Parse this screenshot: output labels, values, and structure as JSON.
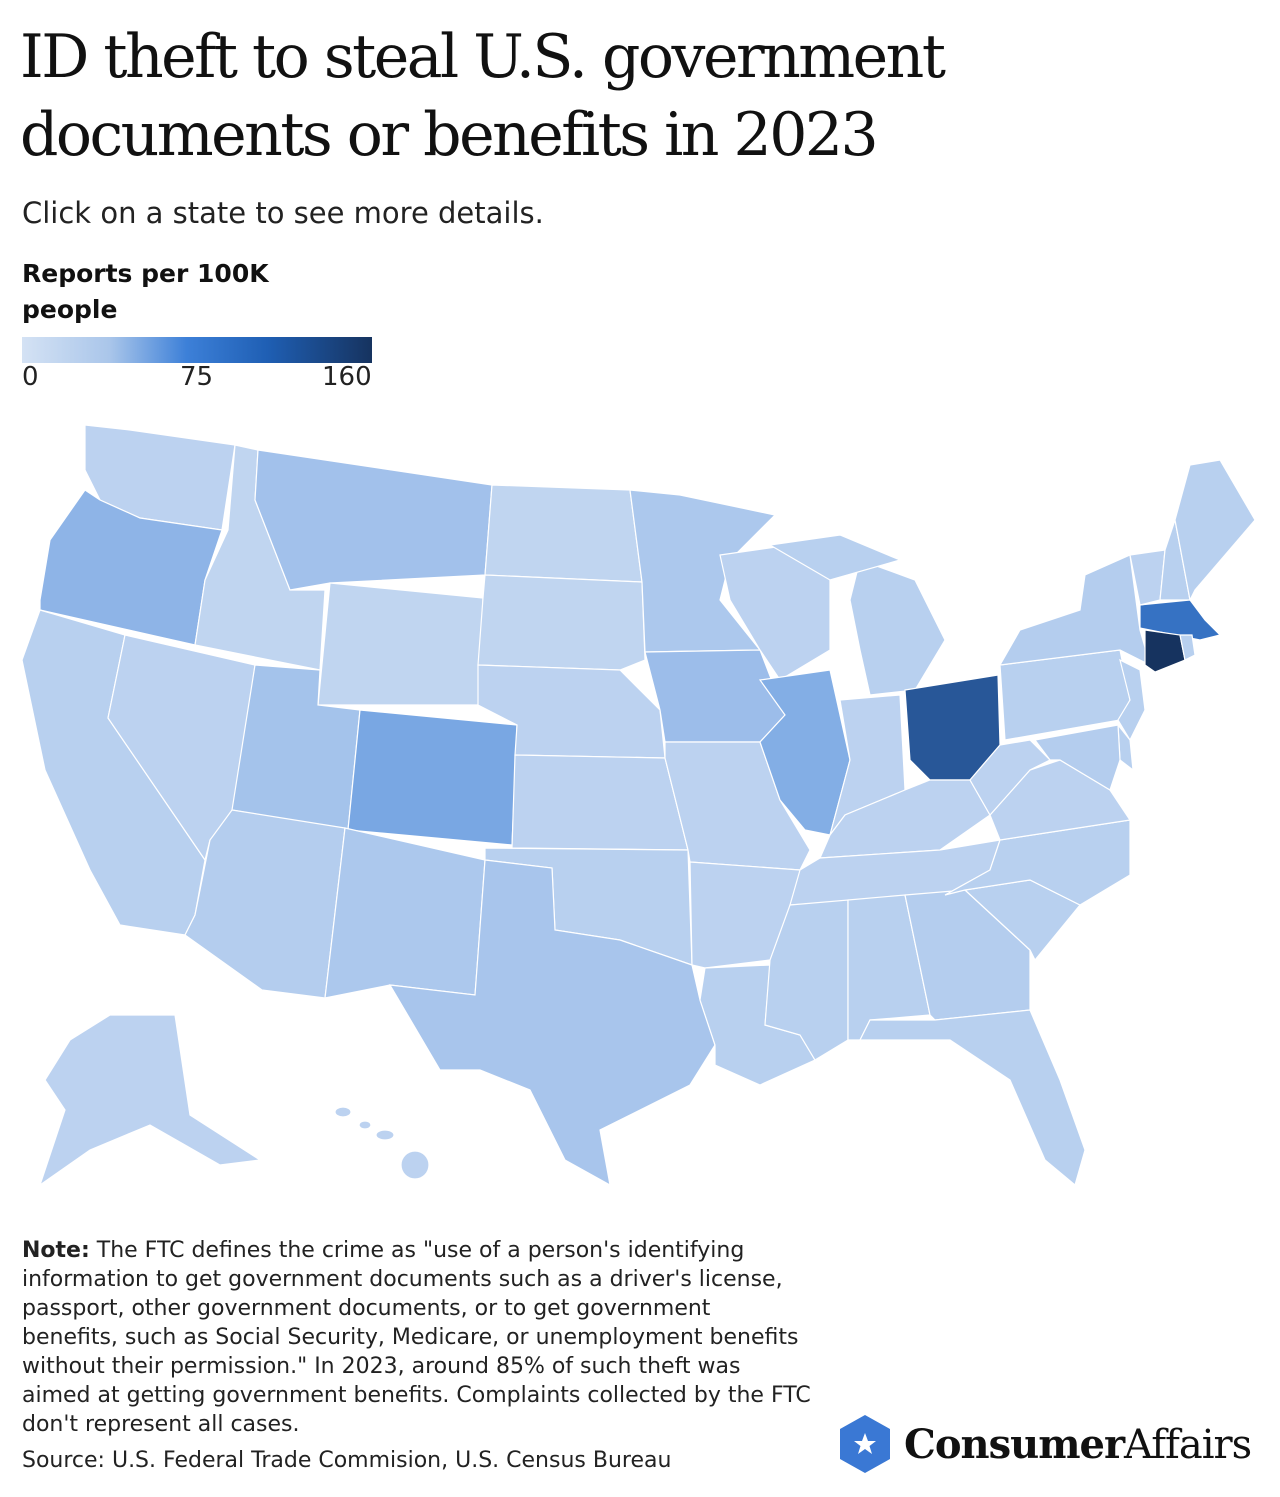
{
  "title": "ID theft to steal U.S. government documents or benefits in 2023",
  "subtitle": "Click on a state to see more details.",
  "legend": {
    "title": "Reports per 100K people",
    "ticks": [
      "0",
      "75",
      "160"
    ],
    "min": 0,
    "max": 160,
    "colors": [
      "#d4e2f4",
      "#3d80d8",
      "#16335f"
    ]
  },
  "map_data": {
    "type": "choropleth",
    "metric": "Reports per 100K people",
    "values": {
      "WA": 12,
      "OR": 35,
      "CA": 14,
      "ID": 10,
      "NV": 12,
      "MT": 25,
      "WY": 10,
      "UT": 24,
      "CO": 45,
      "AZ": 16,
      "NM": 20,
      "ND": 10,
      "SD": 10,
      "NE": 12,
      "KS": 12,
      "OK": 14,
      "TX": 22,
      "MN": 20,
      "IA": 28,
      "MO": 12,
      "AR": 12,
      "LA": 14,
      "WI": 12,
      "IL": 40,
      "MI": 14,
      "IN": 12,
      "OH": 120,
      "KY": 12,
      "TN": 12,
      "MS": 14,
      "AL": 14,
      "GA": 16,
      "FL": 14,
      "SC": 14,
      "NC": 14,
      "VA": 12,
      "WV": 12,
      "PA": 14,
      "NY": 16,
      "VT": 12,
      "NH": 14,
      "ME": 14,
      "MA": 90,
      "CT": 160,
      "RI": 14,
      "NJ": 14,
      "DE": 14,
      "MD": 16,
      "AK": 12,
      "HI": 12
    }
  },
  "note": {
    "label": "Note:",
    "text": "The FTC defines the crime as \"use of a person's identifying information to get government documents such as a driver's license, passport, other government documents, or to get government benefits, such as Social Security, Medicare, or unemployment benefits without their permission.\" In 2023, around 85% of such theft was aimed at getting government benefits. Complaints collected by the FTC don't represent all cases."
  },
  "source": "Source: U.S. Federal Trade Commision, U.S. Census Bureau",
  "logo": {
    "bold": "Consumer",
    "regular": "Affairs",
    "color": "#3a78d4"
  }
}
